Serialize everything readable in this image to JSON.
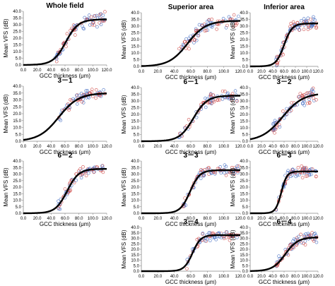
{
  "chart_data": [
    {
      "id": "p1",
      "type": "scatter",
      "title": "Whole field",
      "xlabel": "GCC thickness (μm)",
      "ylabel": "Mean VFS (dB)",
      "xlim": [
        0,
        120
      ],
      "ylim": [
        0,
        40
      ],
      "xticks": [
        "0.0",
        "20.0",
        "40.0",
        "60.0",
        "80.0",
        "100.0",
        "120.0"
      ],
      "yticks": [
        "0.0",
        "5.0",
        "10.0",
        "15.0",
        "20.0",
        "25.0",
        "30.0",
        "35.0",
        "40.0"
      ],
      "curve": {
        "ymin": 0,
        "ymax": 34,
        "x50": 61,
        "slope": 0.11
      },
      "scatter": {
        "xmin": 45,
        "xmax": 118,
        "spread": 6,
        "n": 90,
        "seed": 11
      }
    },
    {
      "id": "p2",
      "type": "scatter",
      "title": "Superior area",
      "xlabel": "GCC thickness (μm)",
      "ylabel": "Mean VFS (dB)",
      "xlim": [
        0,
        120
      ],
      "ylim": [
        0,
        40
      ],
      "xticks": [
        "0.0",
        "20.0",
        "40.0",
        "60.0",
        "80.0",
        "100.0",
        "120.0"
      ],
      "yticks": [
        "0.0",
        "5.0",
        "10.0",
        "15.0",
        "20.0",
        "25.0",
        "30.0",
        "35.0",
        "40.0"
      ],
      "curve": {
        "ymin": 0,
        "ymax": 34,
        "x50": 56,
        "slope": 0.09
      },
      "scatter": {
        "xmin": 45,
        "xmax": 118,
        "spread": 6,
        "n": 90,
        "seed": 23
      }
    },
    {
      "id": "p3",
      "type": "scatter",
      "title": "Inferior area",
      "xlabel": "GCC thickness (μm)",
      "ylabel": "Mean VFS (dB)",
      "xlim": [
        0,
        120
      ],
      "ylim": [
        0,
        40
      ],
      "xticks": [
        "0.0",
        "20.0",
        "40.0",
        "60.0",
        "80.0",
        "100.0",
        "120.0"
      ],
      "yticks": [
        "0.0",
        "5.0",
        "10.0",
        "15.0",
        "20.0",
        "25.0",
        "30.0",
        "35.0",
        "40.0"
      ],
      "curve": {
        "ymin": 0,
        "ymax": 32,
        "x50": 60,
        "slope": 0.14
      },
      "scatter": {
        "xmin": 45,
        "xmax": 118,
        "spread": 6,
        "n": 90,
        "seed": 37
      }
    },
    {
      "id": "p4",
      "type": "scatter",
      "title": "3－1",
      "xlabel": "GCC thickness (μm)",
      "ylabel": "Mean VFS (dB)",
      "xlim": [
        0,
        120
      ],
      "ylim": [
        0,
        40
      ],
      "xticks": [
        "0.0",
        "20.0",
        "40.0",
        "60.0",
        "80.0",
        "100.0",
        "120.0"
      ],
      "yticks": [
        "0.0",
        "5.0",
        "10.0",
        "15.0",
        "20.0",
        "25.0",
        "30.0",
        "35.0",
        "40.0"
      ],
      "curve": {
        "ymin": 0,
        "ymax": 35,
        "x50": 51,
        "slope": 0.07
      },
      "scatter": {
        "xmin": 50,
        "xmax": 118,
        "spread": 5,
        "n": 80,
        "seed": 41
      }
    },
    {
      "id": "p5",
      "type": "scatter",
      "title": "6－1",
      "xlabel": "GCC thickness (μm)",
      "ylabel": "Mean VFS (dB)",
      "xlim": [
        0,
        120
      ],
      "ylim": [
        0,
        40
      ],
      "xticks": [
        "0.0",
        "20.0",
        "40.0",
        "60.0",
        "80.0",
        "100.0",
        "120.0"
      ],
      "yticks": [
        "0.0",
        "5.0",
        "10.0",
        "15.0",
        "20.0",
        "25.0",
        "30.0",
        "35.0",
        "40.0"
      ],
      "curve": {
        "ymin": 0,
        "ymax": 34,
        "x50": 63,
        "slope": 0.12
      },
      "scatter": {
        "xmin": 45,
        "xmax": 118,
        "spread": 5,
        "n": 80,
        "seed": 53
      }
    },
    {
      "id": "p6",
      "type": "scatter",
      "title": "3－2",
      "xlabel": "GCC thickness (μm)",
      "ylabel": "Mean VFS (dB)",
      "xlim": [
        0,
        120
      ],
      "ylim": [
        0,
        40
      ],
      "xticks": [
        "0.0",
        "20.0",
        "40.0",
        "60.0",
        "80.0",
        "100.0",
        "120.0"
      ],
      "yticks": [
        "0.0",
        "5.0",
        "10.0",
        "15.0",
        "20.0",
        "25.0",
        "30.0",
        "35.0",
        "40.0"
      ],
      "curve": {
        "ymin": 0,
        "ymax": 36,
        "x50": 57,
        "slope": 0.055
      },
      "scatter": {
        "xmin": 40,
        "xmax": 118,
        "spread": 6,
        "n": 80,
        "seed": 67
      }
    },
    {
      "id": "p7",
      "type": "scatter",
      "title": "6－2",
      "xlabel": "GCC thickness (μm)",
      "ylabel": "Mean VFS (dB)",
      "xlim": [
        0,
        120
      ],
      "ylim": [
        0,
        40
      ],
      "xticks": [
        "0.0",
        "20.0",
        "40.0",
        "60.0",
        "80.0",
        "100.0",
        "120.0"
      ],
      "yticks": [
        "0.0",
        "5.0",
        "10.0",
        "15.0",
        "20.0",
        "25.0",
        "30.0",
        "35.0",
        "40.0"
      ],
      "curve": {
        "ymin": 0,
        "ymax": 34,
        "x50": 63,
        "slope": 0.12
      },
      "scatter": {
        "xmin": 50,
        "xmax": 118,
        "spread": 5,
        "n": 80,
        "seed": 71
      }
    },
    {
      "id": "p8",
      "type": "scatter",
      "title": "3－3",
      "xlabel": "GCC thickness (μm)",
      "ylabel": "Mean VFS (dB)",
      "xlim": [
        0,
        120
      ],
      "ylim": [
        0,
        40
      ],
      "xticks": [
        "0.0",
        "20.0",
        "40.0",
        "60.0",
        "80.0",
        "100.0",
        "120.0"
      ],
      "yticks": [
        "0.0",
        "5.0",
        "10.0",
        "15.0",
        "20.0",
        "25.0",
        "30.0",
        "35.0",
        "40.0"
      ],
      "curve": {
        "ymin": 0,
        "ymax": 33,
        "x50": 59,
        "slope": 0.17
      },
      "scatter": {
        "xmin": 50,
        "xmax": 118,
        "spread": 5,
        "n": 80,
        "seed": 83
      }
    },
    {
      "id": "p9",
      "type": "scatter",
      "title": "6－3",
      "xlabel": "GCC thickness (μm)",
      "ylabel": "Mean VFS (dB)",
      "xlim": [
        0,
        120
      ],
      "ylim": [
        0,
        40
      ],
      "xticks": [
        "0.0",
        "20.0",
        "40.0",
        "60.0",
        "80.0",
        "100.0",
        "120.0"
      ],
      "yticks": [
        "0.0",
        "5.0",
        "10.0",
        "15.0",
        "20.0",
        "25.0",
        "30.0",
        "35.0",
        "40.0"
      ],
      "curve": {
        "ymin": 0,
        "ymax": 32,
        "x50": 55,
        "slope": 0.2
      },
      "scatter": {
        "xmin": 45,
        "xmax": 118,
        "spread": 5,
        "n": 80,
        "seed": 97
      }
    },
    {
      "id": "p10",
      "type": "scatter",
      "title": "3－4",
      "xlabel": "GCC thickness (μm)",
      "ylabel": "Mean VFS (dB)",
      "xlim": [
        0,
        120
      ],
      "ylim": [
        0,
        40
      ],
      "xticks": [
        "0.0",
        "20.0",
        "40.0",
        "60.0",
        "80.0",
        "100.0",
        "120.0"
      ],
      "yticks": [
        "0.0",
        "5.0",
        "10.0",
        "15.0",
        "20.0",
        "25.0",
        "30.0",
        "35.0",
        "40.0"
      ],
      "curve": {
        "ymin": 0,
        "ymax": 33,
        "x50": 62,
        "slope": 0.2
      },
      "scatter": {
        "xmin": 55,
        "xmax": 118,
        "spread": 5,
        "n": 80,
        "seed": 101
      }
    },
    {
      "id": "p11",
      "type": "scatter",
      "title": "6－4",
      "xlabel": "GCC thickness (μm)",
      "ylabel": "Mean VFS (dB)",
      "xlim": [
        0,
        120
      ],
      "ylim": [
        0,
        40
      ],
      "xticks": [
        "0.0",
        "20.0",
        "40.0",
        "60.0",
        "80.0",
        "100.0",
        "120.0"
      ],
      "yticks": [
        "0.0",
        "5.0",
        "10.0",
        "15.0",
        "20.0",
        "25.0",
        "30.0",
        "35.0",
        "40.0"
      ],
      "curve": {
        "ymin": 0,
        "ymax": 31,
        "x50": 62,
        "slope": 0.09
      },
      "scatter": {
        "xmin": 45,
        "xmax": 118,
        "spread": 6,
        "n": 80,
        "seed": 113
      }
    }
  ],
  "colors": {
    "curve": "#000000",
    "series_blue": "#4a72c4",
    "series_red": "#d0504e",
    "axis": "#888888"
  }
}
